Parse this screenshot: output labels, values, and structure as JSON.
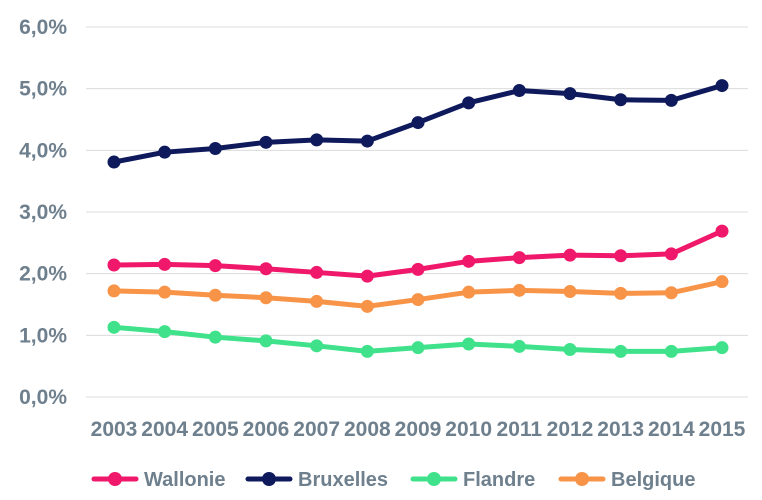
{
  "chart_data": {
    "type": "line",
    "title": "",
    "xlabel": "",
    "ylabel": "",
    "categories": [
      "2003",
      "2004",
      "2005",
      "2006",
      "2007",
      "2008",
      "2009",
      "2010",
      "2011",
      "2012",
      "2013",
      "2014",
      "2015"
    ],
    "y_ticks": [
      "0,0%",
      "1,0%",
      "2,0%",
      "3,0%",
      "4,0%",
      "5,0%",
      "6,0%"
    ],
    "ylim": [
      0,
      6
    ],
    "grid": true,
    "legend_position": "bottom",
    "series": [
      {
        "name": "Wallonie",
        "color": "#f0186a",
        "values": [
          2.14,
          2.15,
          2.13,
          2.08,
          2.02,
          1.96,
          2.07,
          2.2,
          2.26,
          2.3,
          2.29,
          2.32,
          2.69
        ]
      },
      {
        "name": "Bruxelles",
        "color": "#0f1a5c",
        "values": [
          3.81,
          3.97,
          4.03,
          4.13,
          4.17,
          4.15,
          4.45,
          4.77,
          4.97,
          4.92,
          4.82,
          4.81,
          5.05
        ]
      },
      {
        "name": "Flandre",
        "color": "#3fe28a",
        "values": [
          1.13,
          1.06,
          0.97,
          0.91,
          0.83,
          0.74,
          0.8,
          0.86,
          0.82,
          0.77,
          0.74,
          0.74,
          0.8
        ]
      },
      {
        "name": "Belgique",
        "color": "#f79448",
        "values": [
          1.72,
          1.7,
          1.65,
          1.61,
          1.55,
          1.47,
          1.58,
          1.7,
          1.73,
          1.71,
          1.68,
          1.69,
          1.87
        ]
      }
    ]
  }
}
